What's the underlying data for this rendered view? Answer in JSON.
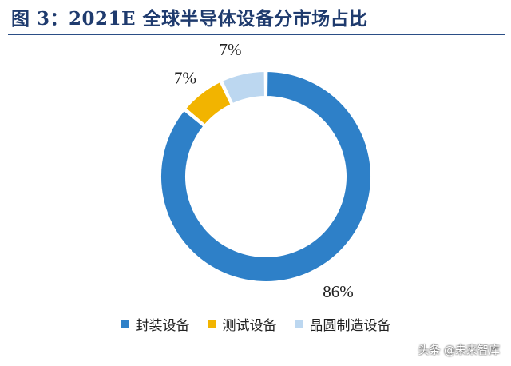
{
  "title": "图 3：2021E 全球半导体设备分市场占比",
  "watermark": "头条 @未来智库",
  "chart_data": {
    "type": "pie",
    "style": "donut",
    "categories": [
      "封装设备",
      "测试设备",
      "晶圆制造设备"
    ],
    "values": [
      86,
      7,
      7
    ],
    "value_labels": [
      "86%",
      "7%",
      "7%"
    ],
    "colors": [
      "#2e80c8",
      "#f2b400",
      "#bcd7f0"
    ],
    "legend_position": "bottom"
  }
}
